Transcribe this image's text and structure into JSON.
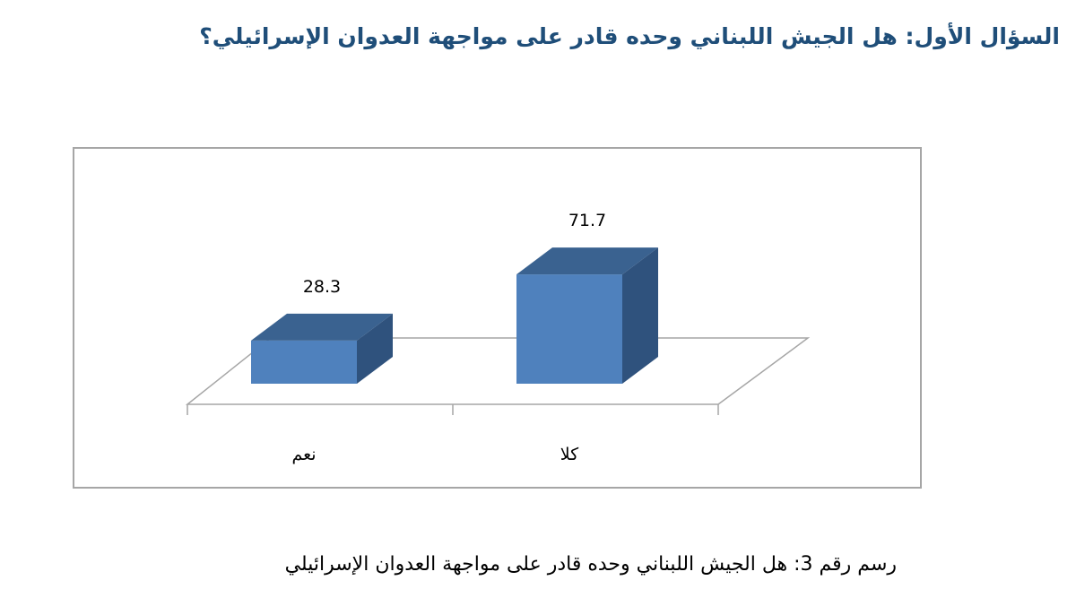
{
  "page": {
    "heading": "السؤال الأول: هل الجيش اللبناني وحده قادر على مواجهة العدوان الإسرائيلي؟",
    "caption": "رسم رقم 3: هل الجيش اللبناني وحده قادر على مواجهة العدوان الإسرائيلي"
  },
  "chart_data": {
    "type": "bar",
    "style": "3d-column",
    "categories": [
      "نعم",
      "كلا"
    ],
    "values": [
      28.3,
      71.7
    ],
    "value_labels": [
      "28.3",
      "71.7"
    ],
    "title": "",
    "xlabel": "",
    "ylabel": "",
    "ylim": [
      0,
      100
    ],
    "grid": false,
    "legend": "none",
    "colors": {
      "bar_front": "#4f81bd",
      "bar_top": "#3a6290",
      "bar_side": "#2f527d",
      "floor_line": "#a6a6a6",
      "frame": "#a6a6a6"
    }
  }
}
